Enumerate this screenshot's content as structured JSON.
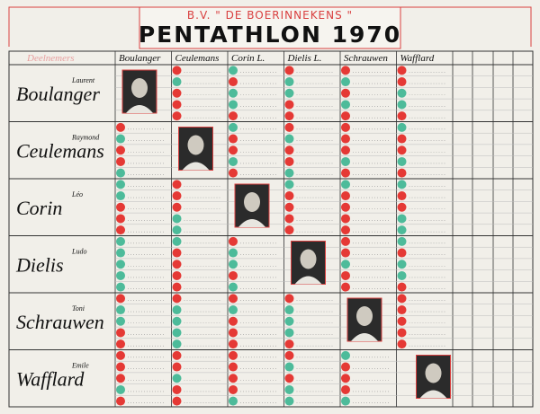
{
  "header": {
    "club": "B.V. \" DE BOERINNEKENS \"",
    "title": "PENTATHLON 1970"
  },
  "table": {
    "name_header": "Deelnemers",
    "columns": [
      "Boulanger",
      "Ceulemans",
      "Corin L.",
      "Dielis L.",
      "Schrauwen",
      "Wafflard"
    ],
    "players": [
      {
        "first": "Laurent",
        "last": "Boulanger"
      },
      {
        "first": "Raymond",
        "last": "Ceulemans"
      },
      {
        "first": "Léo",
        "last": "Corin"
      },
      {
        "first": "Ludo",
        "last": "Dielis"
      },
      {
        "first": "Toni",
        "last": "Schrauwen"
      },
      {
        "first": "Emile",
        "last": "Wafflard"
      }
    ]
  }
}
